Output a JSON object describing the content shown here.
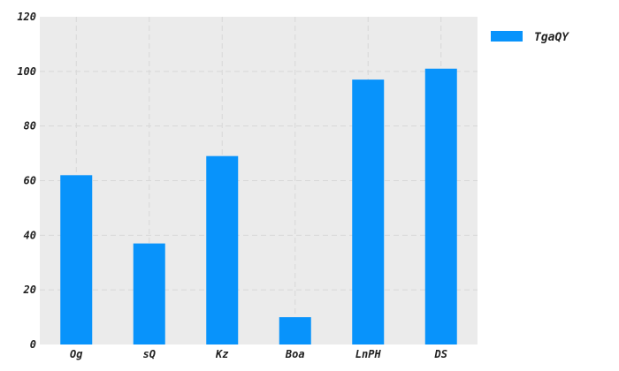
{
  "chart_data": {
    "type": "bar",
    "categories": [
      "Og",
      "sQ",
      "Kz",
      "Boa",
      "LnPH",
      "DS"
    ],
    "series": [
      {
        "name": "TgaQY",
        "values": [
          62,
          37,
          69,
          10,
          97,
          101
        ]
      }
    ],
    "ylim": [
      0,
      120
    ],
    "yticks": [
      0,
      20,
      40,
      60,
      80,
      100,
      120
    ],
    "grid": true,
    "legend_position": "top-right",
    "colors": {
      "bar": "#0893fb",
      "plot_bg": "#ebebeb",
      "grid": "#d8d8d8"
    }
  }
}
